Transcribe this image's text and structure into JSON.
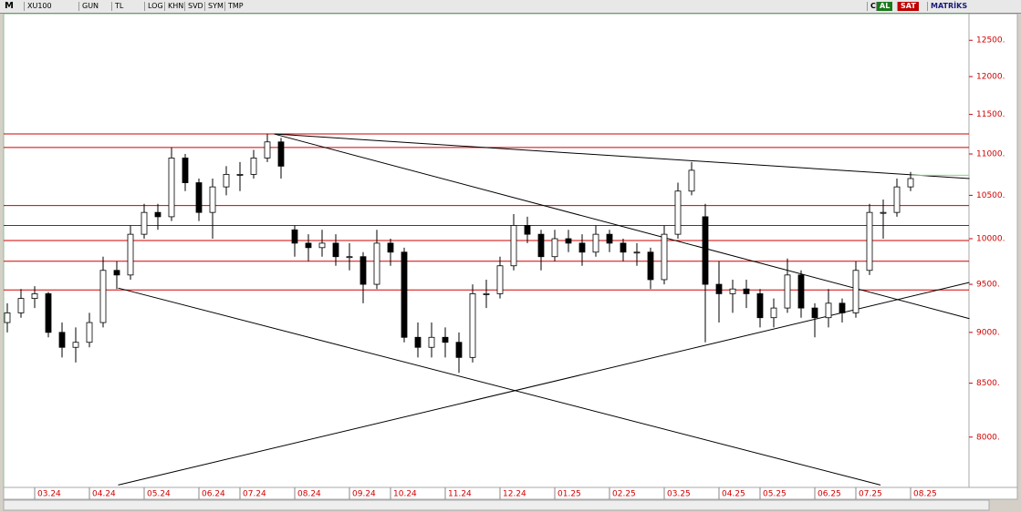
{
  "toolbar": {
    "logo": "M",
    "symbol": "XU100",
    "buttons": [
      "GUN",
      "TL",
      "LOG",
      "KHN",
      "SVD",
      "SYM",
      "TMP"
    ],
    "right": [
      "C",
      "AL",
      "SAT",
      "MATRİKS"
    ]
  },
  "chart_data": {
    "type": "candlestick",
    "log_scale": true,
    "up_color": "#ffffff",
    "down_color": "#000000",
    "hline_color": "#d00000",
    "trend_color": "#000000",
    "mark_color": "#7ddc7d",
    "categories": [
      null,
      null,
      "03.24",
      null,
      null,
      null,
      "04.24",
      null,
      null,
      null,
      "05.24",
      null,
      null,
      null,
      "06.24",
      null,
      null,
      "07.24",
      null,
      null,
      null,
      "08.24",
      null,
      null,
      null,
      "09.24",
      null,
      null,
      "10.24",
      null,
      null,
      null,
      "11.24",
      null,
      null,
      null,
      "12.24",
      null,
      null,
      null,
      "01.25",
      null,
      null,
      null,
      "02.25",
      null,
      null,
      null,
      "03.25",
      null,
      null,
      null,
      "04.25",
      null,
      null,
      "05.25",
      null,
      null,
      null,
      "06.25",
      null,
      null,
      "07.25",
      null,
      null,
      null,
      "08.25"
    ],
    "open": [
      9100,
      9200,
      9350,
      9400,
      9000,
      8850,
      8900,
      9100,
      9650,
      9600,
      10050,
      10300,
      10250,
      10950,
      10650,
      10300,
      10600,
      10750,
      10750,
      10950,
      11150,
      10100,
      9950,
      9900,
      9950,
      9800,
      9800,
      9500,
      9950,
      9850,
      8950,
      8850,
      8950,
      8900,
      8750,
      9400,
      9400,
      9700,
      10150,
      10050,
      9800,
      10000,
      9950,
      9850,
      10050,
      9950,
      9850,
      9850,
      9550,
      10050,
      10550,
      10250,
      9500,
      9400,
      9450,
      9400,
      9150,
      9250,
      9600,
      9250,
      9150,
      9300,
      9200,
      9650,
      10300,
      10300,
      10600
    ],
    "high": [
      9300,
      9450,
      9480,
      9420,
      9100,
      9050,
      9200,
      9800,
      9750,
      10150,
      10400,
      10400,
      11080,
      11000,
      10700,
      10700,
      10850,
      10900,
      11050,
      11250,
      11200,
      10150,
      10050,
      10100,
      10050,
      9950,
      9850,
      10100,
      10000,
      9900,
      9100,
      9100,
      9050,
      9000,
      9500,
      9550,
      9800,
      10280,
      10250,
      10100,
      10100,
      10100,
      10050,
      10150,
      10100,
      10000,
      9950,
      9900,
      10150,
      10650,
      10900,
      10400,
      9750,
      9550,
      9550,
      9450,
      9350,
      9780,
      9650,
      9300,
      9450,
      9350,
      9750,
      10400,
      10450,
      10700,
      10780
    ],
    "low": [
      9000,
      9150,
      9250,
      8950,
      8750,
      8700,
      8850,
      9050,
      9450,
      9550,
      10000,
      10100,
      10200,
      10550,
      10200,
      10000,
      10500,
      10550,
      10700,
      10900,
      10700,
      9800,
      9750,
      9800,
      9700,
      9650,
      9300,
      9450,
      9700,
      8900,
      8750,
      8750,
      8750,
      8600,
      8700,
      9250,
      9350,
      9650,
      9950,
      9650,
      9750,
      9850,
      9700,
      9800,
      9850,
      9750,
      9700,
      9450,
      9500,
      10000,
      10500,
      8900,
      9100,
      9200,
      9250,
      9050,
      9050,
      9200,
      9150,
      8950,
      9050,
      9100,
      9150,
      9600,
      10000,
      10250,
      10550
    ],
    "close": [
      9200,
      9350,
      9400,
      9000,
      8850,
      8900,
      9100,
      9650,
      9600,
      10050,
      10300,
      10250,
      10950,
      10650,
      10300,
      10600,
      10750,
      10750,
      10950,
      11150,
      10850,
      9950,
      9900,
      9950,
      9800,
      9800,
      9500,
      9950,
      9850,
      8950,
      8850,
      8950,
      8900,
      8750,
      9400,
      9400,
      9700,
      10150,
      10050,
      9800,
      10000,
      9950,
      9850,
      10050,
      9950,
      9850,
      9850,
      9550,
      10050,
      10550,
      10800,
      9500,
      9400,
      9450,
      9400,
      9150,
      9250,
      9600,
      9250,
      9150,
      9300,
      9200,
      9650,
      10300,
      10300,
      10600,
      10700
    ],
    "ylim": [
      7560,
      12880
    ],
    "yticks": [
      {
        "value": 8000,
        "label": "8000."
      },
      {
        "value": 8500,
        "label": "8500."
      },
      {
        "value": 9000,
        "label": "9000."
      },
      {
        "value": 9500,
        "label": "9500."
      },
      {
        "value": 10000,
        "label": "10000."
      },
      {
        "value": 10500,
        "label": "10500."
      },
      {
        "value": 11000,
        "label": "11000."
      },
      {
        "value": 11500,
        "label": "11500."
      },
      {
        "value": 12000,
        "label": "12000."
      },
      {
        "value": 12500,
        "label": "12500."
      }
    ],
    "hlines": [
      11250,
      11080,
      10380,
      10150,
      9980,
      9750,
      9440
    ],
    "trendlines": [
      {
        "x": [
          19.5,
          70.3
        ],
        "values": [
          11250,
          10700
        ]
      },
      {
        "x": [
          19.5,
          70.3
        ],
        "values": [
          11250,
          9140
        ]
      },
      {
        "x": [
          8.1,
          63.8
        ],
        "values": [
          9460,
          7580
        ]
      },
      {
        "x": [
          8.1,
          70.3
        ],
        "values": [
          7580,
          9520
        ]
      }
    ],
    "marker_line": {
      "x": [
        65.9,
        70.3
      ],
      "values": [
        10740,
        10740
      ]
    }
  }
}
